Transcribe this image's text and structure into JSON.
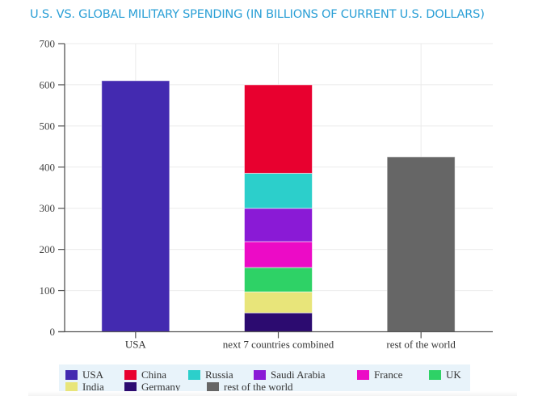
{
  "chart_data": {
    "type": "bar",
    "stacked": true,
    "title": "U.S. VS. GLOBAL MILITARY SPENDING (IN BILLIONS OF CURRENT U.S. DOLLARS)",
    "xlabel": "",
    "ylabel": "",
    "ylim": [
      0,
      700
    ],
    "yticks": [
      0,
      100,
      200,
      300,
      400,
      500,
      600,
      700
    ],
    "grid": true,
    "legend_position": "bottom",
    "categories": [
      "USA",
      "next 7 countries combined",
      "rest of the world"
    ],
    "series": [
      {
        "name": "USA",
        "color": "#432ab0",
        "values": [
          610,
          0,
          0
        ]
      },
      {
        "name": "Germany",
        "color": "#2c0b70",
        "values": [
          0,
          46,
          0
        ]
      },
      {
        "name": "India",
        "color": "#e8e57a",
        "values": [
          0,
          51,
          0
        ]
      },
      {
        "name": "UK",
        "color": "#2ed266",
        "values": [
          0,
          59,
          0
        ]
      },
      {
        "name": "France",
        "color": "#ec0bc6",
        "values": [
          0,
          63,
          0
        ]
      },
      {
        "name": "Saudi Arabia",
        "color": "#8a1ad6",
        "values": [
          0,
          81,
          0
        ]
      },
      {
        "name": "Russia",
        "color": "#2ccfcb",
        "values": [
          0,
          85,
          0
        ]
      },
      {
        "name": "China",
        "color": "#e8002f",
        "values": [
          0,
          215,
          0
        ]
      },
      {
        "name": "rest of the world",
        "color": "#666666",
        "values": [
          0,
          0,
          425
        ]
      }
    ],
    "legend": [
      {
        "name": "USA",
        "color": "#432ab0"
      },
      {
        "name": "China",
        "color": "#e8002f"
      },
      {
        "name": "Russia",
        "color": "#2ccfcb"
      },
      {
        "name": "Saudi Arabia",
        "color": "#8a1ad6"
      },
      {
        "name": "France",
        "color": "#ec0bc6"
      },
      {
        "name": "UK",
        "color": "#2ed266"
      },
      {
        "name": "India",
        "color": "#e8e57a"
      },
      {
        "name": "Germany",
        "color": "#2c0b70"
      },
      {
        "name": "rest of the world",
        "color": "#666666"
      }
    ]
  }
}
